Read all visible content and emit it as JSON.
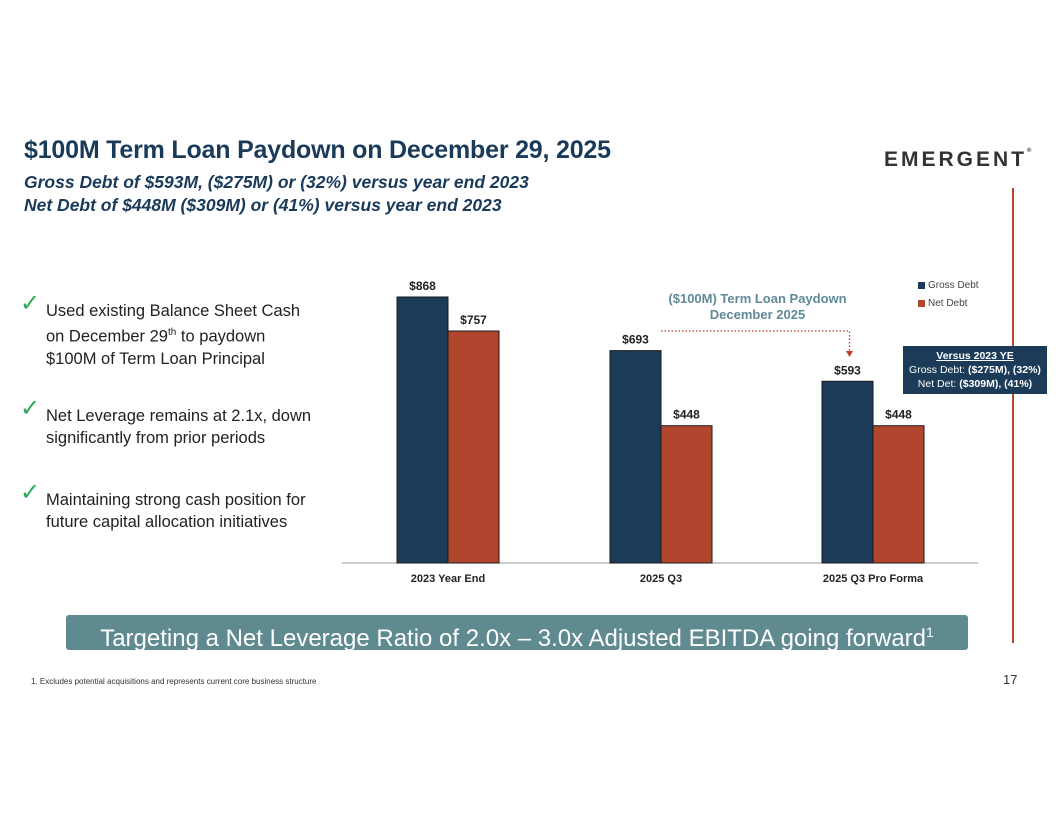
{
  "header": {
    "title": "$100M Term Loan Paydown on December 29, 2025",
    "subtitle_1": "Gross Debt of $593M, ($275M) or (32%) versus year end 2023",
    "subtitle_2": "Net Debt of $448M ($309M) or (41%) versus year end 2023",
    "logo": "EMERGENT",
    "logo_mark": "®"
  },
  "bullets": {
    "check_icon": "✓",
    "b1_a": "Used existing Balance Sheet Cash on December 29",
    "b1_sup": "th",
    "b1_b": " to paydown $100M of Term Loan Principal",
    "b2": "Net Leverage remains at 2.1x, down significantly from prior periods",
    "b3": "Maintaining strong cash position for future capital allocation initiatives"
  },
  "chart_data": {
    "type": "bar",
    "categories": [
      "2023 Year End",
      "2025 Q3",
      "2025 Q3 Pro Forma"
    ],
    "series": [
      {
        "name": "Gross Debt",
        "values": [
          868,
          693,
          593
        ],
        "labels": [
          "$868",
          "$693",
          "$593"
        ]
      },
      {
        "name": "Net Debt",
        "values": [
          757,
          448,
          448
        ],
        "labels": [
          "$757",
          "$448",
          "$448"
        ]
      }
    ],
    "ylim": [
      0,
      868
    ],
    "legend_position": "top-right",
    "colors": {
      "gross": "#1b3b59",
      "net": "#b1452e",
      "arrow": "#c0392b"
    },
    "annotation": {
      "line1": "($100M) Term Loan Paydown",
      "line2": "December 2025"
    }
  },
  "versus_box": {
    "heading": "Versus 2023 YE",
    "gross_label": "Gross Debt: ",
    "gross_value": "($275M), (32%)",
    "net_label": "Net Det: ",
    "net_value": "($309M), (41%)"
  },
  "banner": {
    "text": "Targeting a Net Leverage Ratio of 2.0x – 3.0x Adjusted EBITDA going forward",
    "sup": "1"
  },
  "footnote": "1. Excludes potential acquisitions and represents current core business structure",
  "page_number": "17"
}
